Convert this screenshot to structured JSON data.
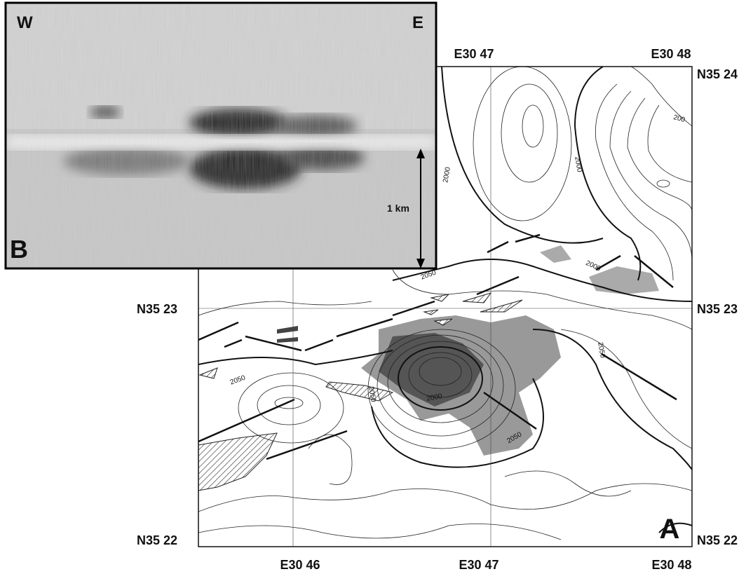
{
  "panel_b": {
    "label": "B",
    "west": "W",
    "east": "E",
    "scale": "1 km"
  },
  "panel_a": {
    "label": "A",
    "top_longitudes": [
      "E30 47",
      "E30 48"
    ],
    "bottom_longitudes": [
      "E30 46",
      "E30 47",
      "E30 48"
    ],
    "left_latitudes": [
      "N35 23",
      "N35 22"
    ],
    "right_latitudes": [
      "N35 24",
      "N35 23",
      "N35 22"
    ],
    "contour_labels": [
      "2050",
      "2000",
      "2000",
      "2000",
      "200",
      "2050",
      "2050",
      "2050",
      "2000",
      "2050"
    ]
  }
}
